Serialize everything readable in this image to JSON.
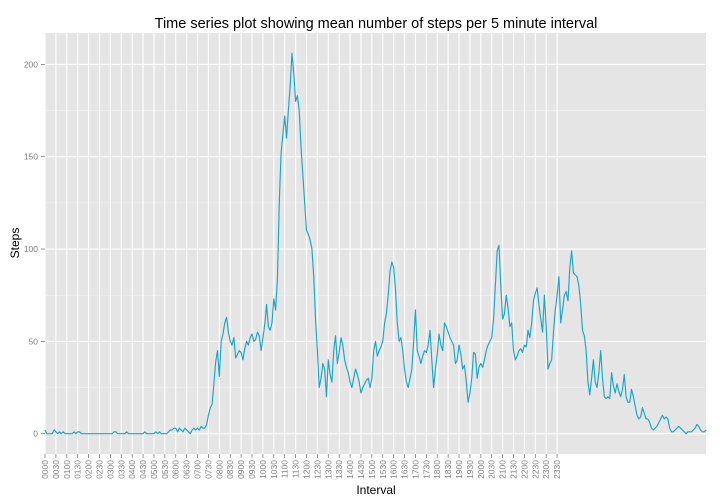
{
  "chart_data": {
    "type": "line",
    "title": "Time series plot showing mean number of steps per 5 minute interval",
    "xlabel": "Interval",
    "ylabel": "Steps",
    "grid": true,
    "legend": "none",
    "ylim": [
      -11,
      217
    ],
    "yticks": [
      0,
      50,
      100,
      150,
      200
    ],
    "xtick_labels": [
      "0000",
      "0030",
      "0100",
      "0130",
      "0200",
      "0230",
      "0300",
      "0330",
      "0400",
      "0430",
      "0500",
      "0530",
      "0600",
      "0630",
      "0700",
      "0730",
      "0800",
      "0830",
      "0900",
      "0930",
      "1000",
      "1030",
      "1100",
      "1130",
      "1200",
      "1230",
      "1300",
      "1330",
      "1400",
      "1430",
      "1500",
      "1530",
      "1600",
      "1630",
      "1700",
      "1730",
      "1800",
      "1830",
      "1900",
      "1930",
      "2000",
      "2030",
      "2100",
      "2130",
      "2200",
      "2230",
      "2300",
      "2330"
    ],
    "interval_minutes": 5,
    "series": [
      {
        "color": "#17a5cf",
        "values": [
          2,
          0,
          0,
          0,
          0,
          2,
          1,
          0,
          1,
          0,
          1,
          0,
          0,
          0,
          0,
          0,
          1,
          0,
          1,
          1,
          0,
          0,
          0,
          0,
          0,
          0,
          0,
          0,
          0,
          0,
          0,
          0,
          0,
          0,
          0,
          0,
          0,
          0,
          1,
          1,
          0,
          0,
          0,
          0,
          0,
          1,
          0,
          0,
          0,
          0,
          0,
          0,
          0,
          0,
          0,
          1,
          0,
          0,
          0,
          0,
          0,
          1,
          0,
          1,
          0,
          0,
          0,
          0,
          1,
          2,
          2,
          3,
          3,
          1,
          3,
          2,
          1,
          3,
          2,
          1,
          0,
          2,
          3,
          2,
          3,
          2,
          4,
          3,
          3,
          5,
          10,
          14,
          16,
          27,
          39,
          45,
          31,
          50,
          54,
          60,
          63,
          55,
          50,
          48,
          52,
          41,
          43,
          45,
          44,
          40,
          46,
          50,
          48,
          52,
          54,
          50,
          51,
          55,
          53,
          45,
          52,
          59,
          70,
          58,
          56,
          60,
          73,
          67,
          84,
          125,
          152,
          162,
          172,
          160,
          175,
          188,
          206,
          195,
          180,
          183,
          175,
          155,
          140,
          125,
          110,
          108,
          105,
          100,
          85,
          62,
          45,
          25,
          30,
          38,
          35,
          20,
          40,
          32,
          28,
          45,
          53,
          38,
          44,
          52,
          48,
          40,
          36,
          33,
          28,
          25,
          30,
          35,
          32,
          28,
          22,
          25,
          27,
          29,
          30,
          25,
          30,
          45,
          50,
          42,
          45,
          47,
          50,
          60,
          65,
          75,
          88,
          93,
          90,
          78,
          60,
          50,
          52,
          45,
          35,
          28,
          25,
          30,
          35,
          50,
          67,
          45,
          42,
          38,
          42,
          45,
          44,
          48,
          56,
          40,
          25,
          35,
          43,
          54,
          48,
          45,
          60,
          58,
          55,
          52,
          50,
          48,
          38,
          40,
          48,
          43,
          35,
          37,
          28,
          17,
          22,
          30,
          44,
          43,
          30,
          36,
          38,
          36,
          40,
          45,
          48,
          50,
          52,
          62,
          80,
          99,
          102,
          80,
          62,
          65,
          75,
          68,
          58,
          60,
          45,
          40,
          42,
          45,
          46,
          44,
          48,
          47,
          56,
          52,
          60,
          72,
          76,
          79,
          70,
          62,
          55,
          75,
          58,
          35,
          38,
          40,
          55,
          67,
          75,
          85,
          60,
          67,
          75,
          77,
          72,
          90,
          99,
          87,
          86,
          85,
          80,
          70,
          56,
          53,
          45,
          28,
          21,
          30,
          40,
          28,
          25,
          33,
          45,
          30,
          20,
          19,
          20,
          19,
          33,
          26,
          22,
          27,
          23,
          20,
          24,
          32,
          20,
          17,
          17,
          24,
          20,
          15,
          10,
          8,
          9,
          14,
          11,
          8,
          8,
          6,
          3,
          2,
          3,
          4,
          6,
          8,
          10,
          8,
          9,
          8,
          3,
          1,
          1,
          2,
          3,
          4,
          3,
          2,
          1,
          0,
          1,
          1,
          1,
          2,
          3,
          5,
          4,
          2,
          1,
          1,
          2
        ]
      }
    ]
  }
}
